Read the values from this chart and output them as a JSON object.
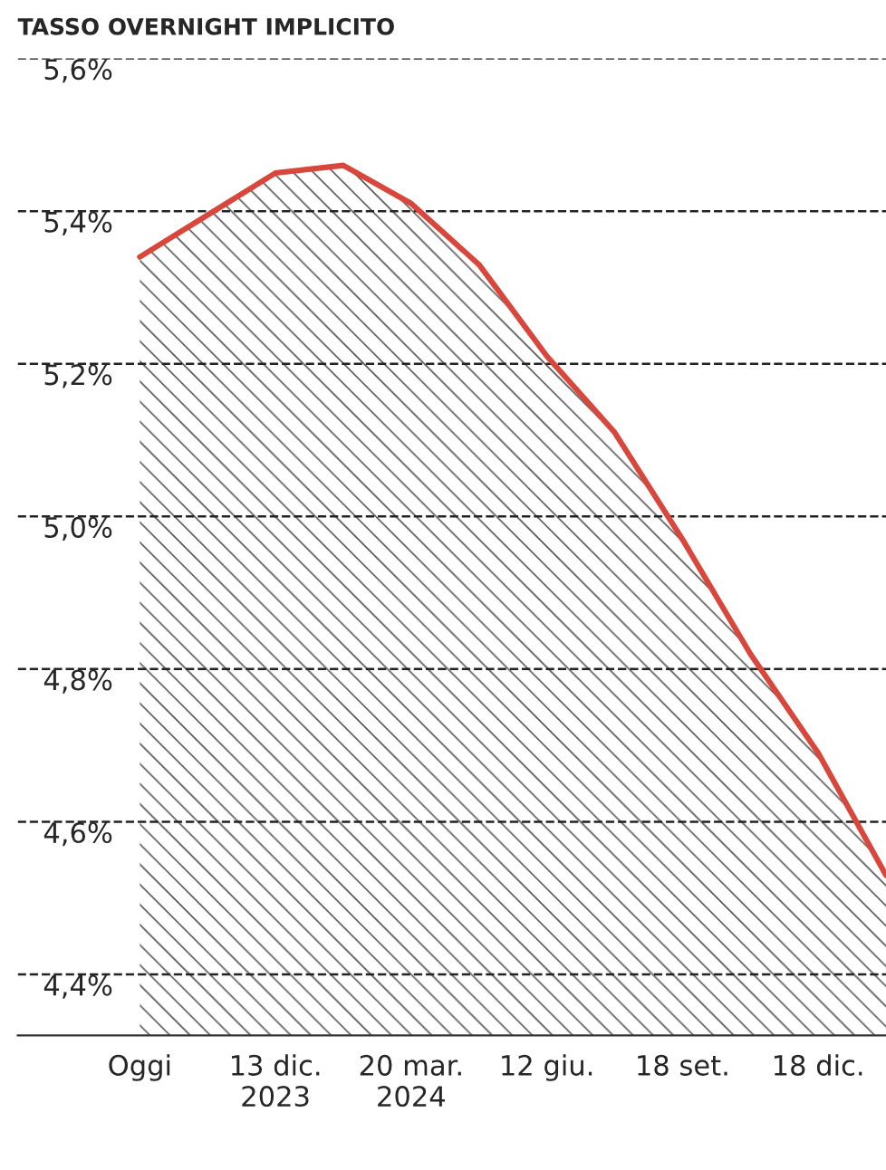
{
  "chart_data": {
    "type": "area",
    "title": "TASSO OVERNIGHT IMPLICITO",
    "categories": [
      "Oggi",
      null,
      "13 dic.\n2023",
      null,
      "20 mar.\n2024",
      null,
      "12 giu.",
      null,
      "18 set.",
      null,
      "18 dic.",
      null
    ],
    "series": [
      {
        "color": "#d9473c",
        "values": [
          5.34,
          5.395,
          5.45,
          5.46,
          5.41,
          5.33,
          5.21,
          5.11,
          4.97,
          4.82,
          4.69,
          4.53
        ]
      }
    ],
    "ylim": [
      4.32,
      5.6
    ],
    "yticks": [
      {
        "value": 4.4,
        "label": "4,4%"
      },
      {
        "value": 4.6,
        "label": "4,6%"
      },
      {
        "value": 4.8,
        "label": "4,8%"
      },
      {
        "value": 5.0,
        "label": "5,0%"
      },
      {
        "value": 5.2,
        "label": "5,2%"
      },
      {
        "value": 5.4,
        "label": "5,4%"
      },
      {
        "value": 5.6,
        "label": "5,6%"
      }
    ],
    "grid": "y",
    "line_style": "solid"
  }
}
